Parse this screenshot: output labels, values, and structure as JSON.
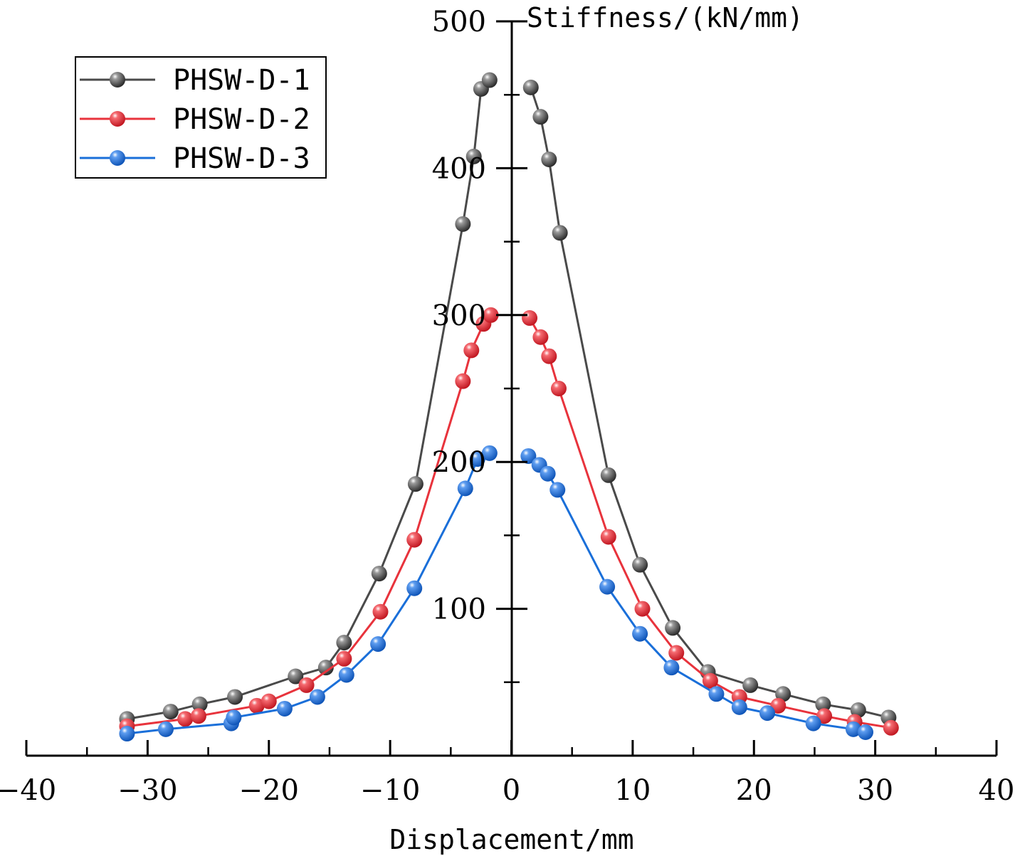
{
  "chart_data": {
    "type": "line",
    "title": "",
    "xlabel": "Displacement/mm",
    "ylabel": "Stiffness/(kN/mm)",
    "xlim": [
      -40,
      40
    ],
    "ylim": [
      0,
      500
    ],
    "x_ticks": [
      -40,
      -30,
      -20,
      -10,
      0,
      10,
      20,
      30,
      40
    ],
    "x_tick_labels": [
      "−40",
      "−30",
      "−20",
      "−10",
      "0",
      "10",
      "20",
      "30",
      "40"
    ],
    "y_ticks": [
      100,
      200,
      300,
      400,
      500
    ],
    "y_tick_labels": [
      "100",
      "200",
      "300",
      "400",
      "500"
    ],
    "grid": false,
    "legend_position": "top-left",
    "series": [
      {
        "name": "PHSW-D-1",
        "color": "#4a4a4a",
        "points": [
          [
            -31.7,
            25
          ],
          [
            -28.1,
            30
          ],
          [
            -25.7,
            35
          ],
          [
            -22.8,
            40
          ],
          [
            -17.8,
            54
          ],
          [
            -15.3,
            60
          ],
          [
            -13.8,
            77
          ],
          [
            -10.9,
            124
          ],
          [
            -7.9,
            185
          ],
          [
            -4,
            362
          ],
          [
            -3.1,
            408
          ],
          [
            -2.5,
            454
          ],
          [
            -1.8,
            460
          ],
          [
            1.6,
            455
          ],
          [
            2.4,
            435
          ],
          [
            3.1,
            406
          ],
          [
            4,
            356
          ],
          [
            8,
            191
          ],
          [
            10.6,
            130
          ],
          [
            13.3,
            87
          ],
          [
            16.2,
            57
          ],
          [
            19.7,
            48
          ],
          [
            22.4,
            42
          ],
          [
            25.7,
            35
          ],
          [
            28.6,
            31
          ],
          [
            31.1,
            26
          ]
        ]
      },
      {
        "name": "PHSW-D-2",
        "color": "#e8333c",
        "points": [
          [
            -31.7,
            20
          ],
          [
            -26.9,
            25
          ],
          [
            -25.8,
            27
          ],
          [
            -21,
            34
          ],
          [
            -20,
            37
          ],
          [
            -16.9,
            48
          ],
          [
            -13.8,
            66
          ],
          [
            -10.8,
            98
          ],
          [
            -8,
            147
          ],
          [
            -4,
            255
          ],
          [
            -3.3,
            276
          ],
          [
            -2.3,
            294
          ],
          [
            -1.7,
            300
          ],
          [
            1.5,
            298
          ],
          [
            2.4,
            285
          ],
          [
            3.1,
            272
          ],
          [
            3.9,
            250
          ],
          [
            8,
            149
          ],
          [
            10.8,
            100
          ],
          [
            13.6,
            70
          ],
          [
            16.4,
            51
          ],
          [
            18.8,
            40
          ],
          [
            22,
            34
          ],
          [
            25.8,
            27
          ],
          [
            28.3,
            23
          ],
          [
            31.3,
            19
          ]
        ]
      },
      {
        "name": "PHSW-D-3",
        "color": "#1a6fd9",
        "points": [
          [
            -31.7,
            15
          ],
          [
            -28.5,
            18
          ],
          [
            -23.1,
            22
          ],
          [
            -22.9,
            26
          ],
          [
            -18.7,
            32
          ],
          [
            -16,
            40
          ],
          [
            -13.6,
            55
          ],
          [
            -11,
            76
          ],
          [
            -8,
            114
          ],
          [
            -3.8,
            182
          ],
          [
            -2.8,
            202
          ],
          [
            -1.8,
            206
          ],
          [
            1.4,
            204
          ],
          [
            2.3,
            198
          ],
          [
            3,
            192
          ],
          [
            3.8,
            181
          ],
          [
            7.9,
            115
          ],
          [
            10.6,
            83
          ],
          [
            13.2,
            60
          ],
          [
            16.9,
            42
          ],
          [
            18.8,
            33
          ],
          [
            21.1,
            29
          ],
          [
            24.9,
            22
          ],
          [
            28.2,
            18
          ],
          [
            29.2,
            16
          ]
        ]
      }
    ]
  }
}
